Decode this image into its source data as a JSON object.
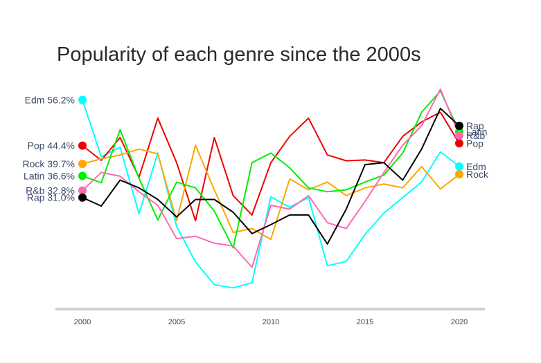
{
  "chart_data": {
    "type": "line",
    "title": "Popularity of each genre since the 2000s",
    "xlabel": "",
    "ylabel": "",
    "x": [
      2000,
      2001,
      2002,
      2003,
      2004,
      2005,
      2006,
      2007,
      2008,
      2009,
      2010,
      2011,
      2012,
      2013,
      2014,
      2015,
      2016,
      2017,
      2018,
      2019,
      2020
    ],
    "xticks": [
      "2000",
      "2005",
      "2010",
      "2015",
      "2020"
    ],
    "ylim": [
      4,
      62
    ],
    "grid": false,
    "legend": "none",
    "series": [
      {
        "name": "Edm",
        "start_label": "Edm 56.2%",
        "end_label": "Edm",
        "color": "#00ffff",
        "values": [
          56.2,
          41.5,
          44.0,
          26.8,
          42.5,
          23.5,
          14.4,
          8.5,
          7.7,
          9.0,
          31.2,
          28.5,
          31.0,
          13.4,
          14.5,
          21.5,
          27.0,
          31.0,
          35.0,
          42.8,
          39.0
        ]
      },
      {
        "name": "Pop",
        "start_label": "Pop 44.4%",
        "end_label": "Pop",
        "color": "#ee0000",
        "values": [
          44.4,
          40.6,
          46.5,
          36.2,
          51.5,
          40.0,
          25.0,
          46.5,
          31.5,
          26.5,
          40.0,
          46.8,
          51.5,
          42.0,
          40.5,
          40.7,
          40.0,
          46.8,
          50.5,
          53.0,
          45.0
        ]
      },
      {
        "name": "Rock",
        "start_label": "Rock 39.7%",
        "end_label": "Rock",
        "color": "#ffa500",
        "values": [
          39.7,
          41.0,
          42.0,
          43.5,
          42.3,
          25.0,
          44.5,
          33.0,
          22.0,
          23.0,
          20.2,
          35.8,
          33.0,
          35.0,
          31.5,
          33.5,
          34.5,
          33.5,
          39.0,
          33.2,
          37.0
        ]
      },
      {
        "name": "Latin",
        "start_label": "Latin 36.6%",
        "end_label": "Latin",
        "color": "#00ee00",
        "values": [
          36.6,
          34.8,
          48.5,
          36.0,
          25.2,
          35.0,
          33.5,
          27.5,
          18.0,
          40.0,
          42.5,
          38.7,
          33.5,
          32.5,
          33.0,
          35.0,
          36.8,
          42.5,
          53.0,
          58.5,
          48.0
        ]
      },
      {
        "name": "R&b",
        "start_label": "R&b 32.8%",
        "end_label": "R&b",
        "color": "#ff69b4",
        "values": [
          32.8,
          37.5,
          36.5,
          32.5,
          29.0,
          20.4,
          21.0,
          19.2,
          18.5,
          13.0,
          29.0,
          28.0,
          31.5,
          24.5,
          23.0,
          30.0,
          37.5,
          44.5,
          49.5,
          59.0,
          47.0
        ]
      },
      {
        "name": "Rap",
        "start_label": "Rap 31.0%",
        "end_label": "Rap",
        "color": "#000000",
        "values": [
          31.0,
          28.8,
          35.5,
          33.5,
          30.5,
          26.0,
          30.5,
          30.5,
          27.2,
          21.7,
          24.0,
          26.5,
          26.5,
          19.0,
          28.0,
          39.5,
          40.0,
          35.5,
          43.5,
          54.0,
          49.5
        ]
      }
    ]
  }
}
